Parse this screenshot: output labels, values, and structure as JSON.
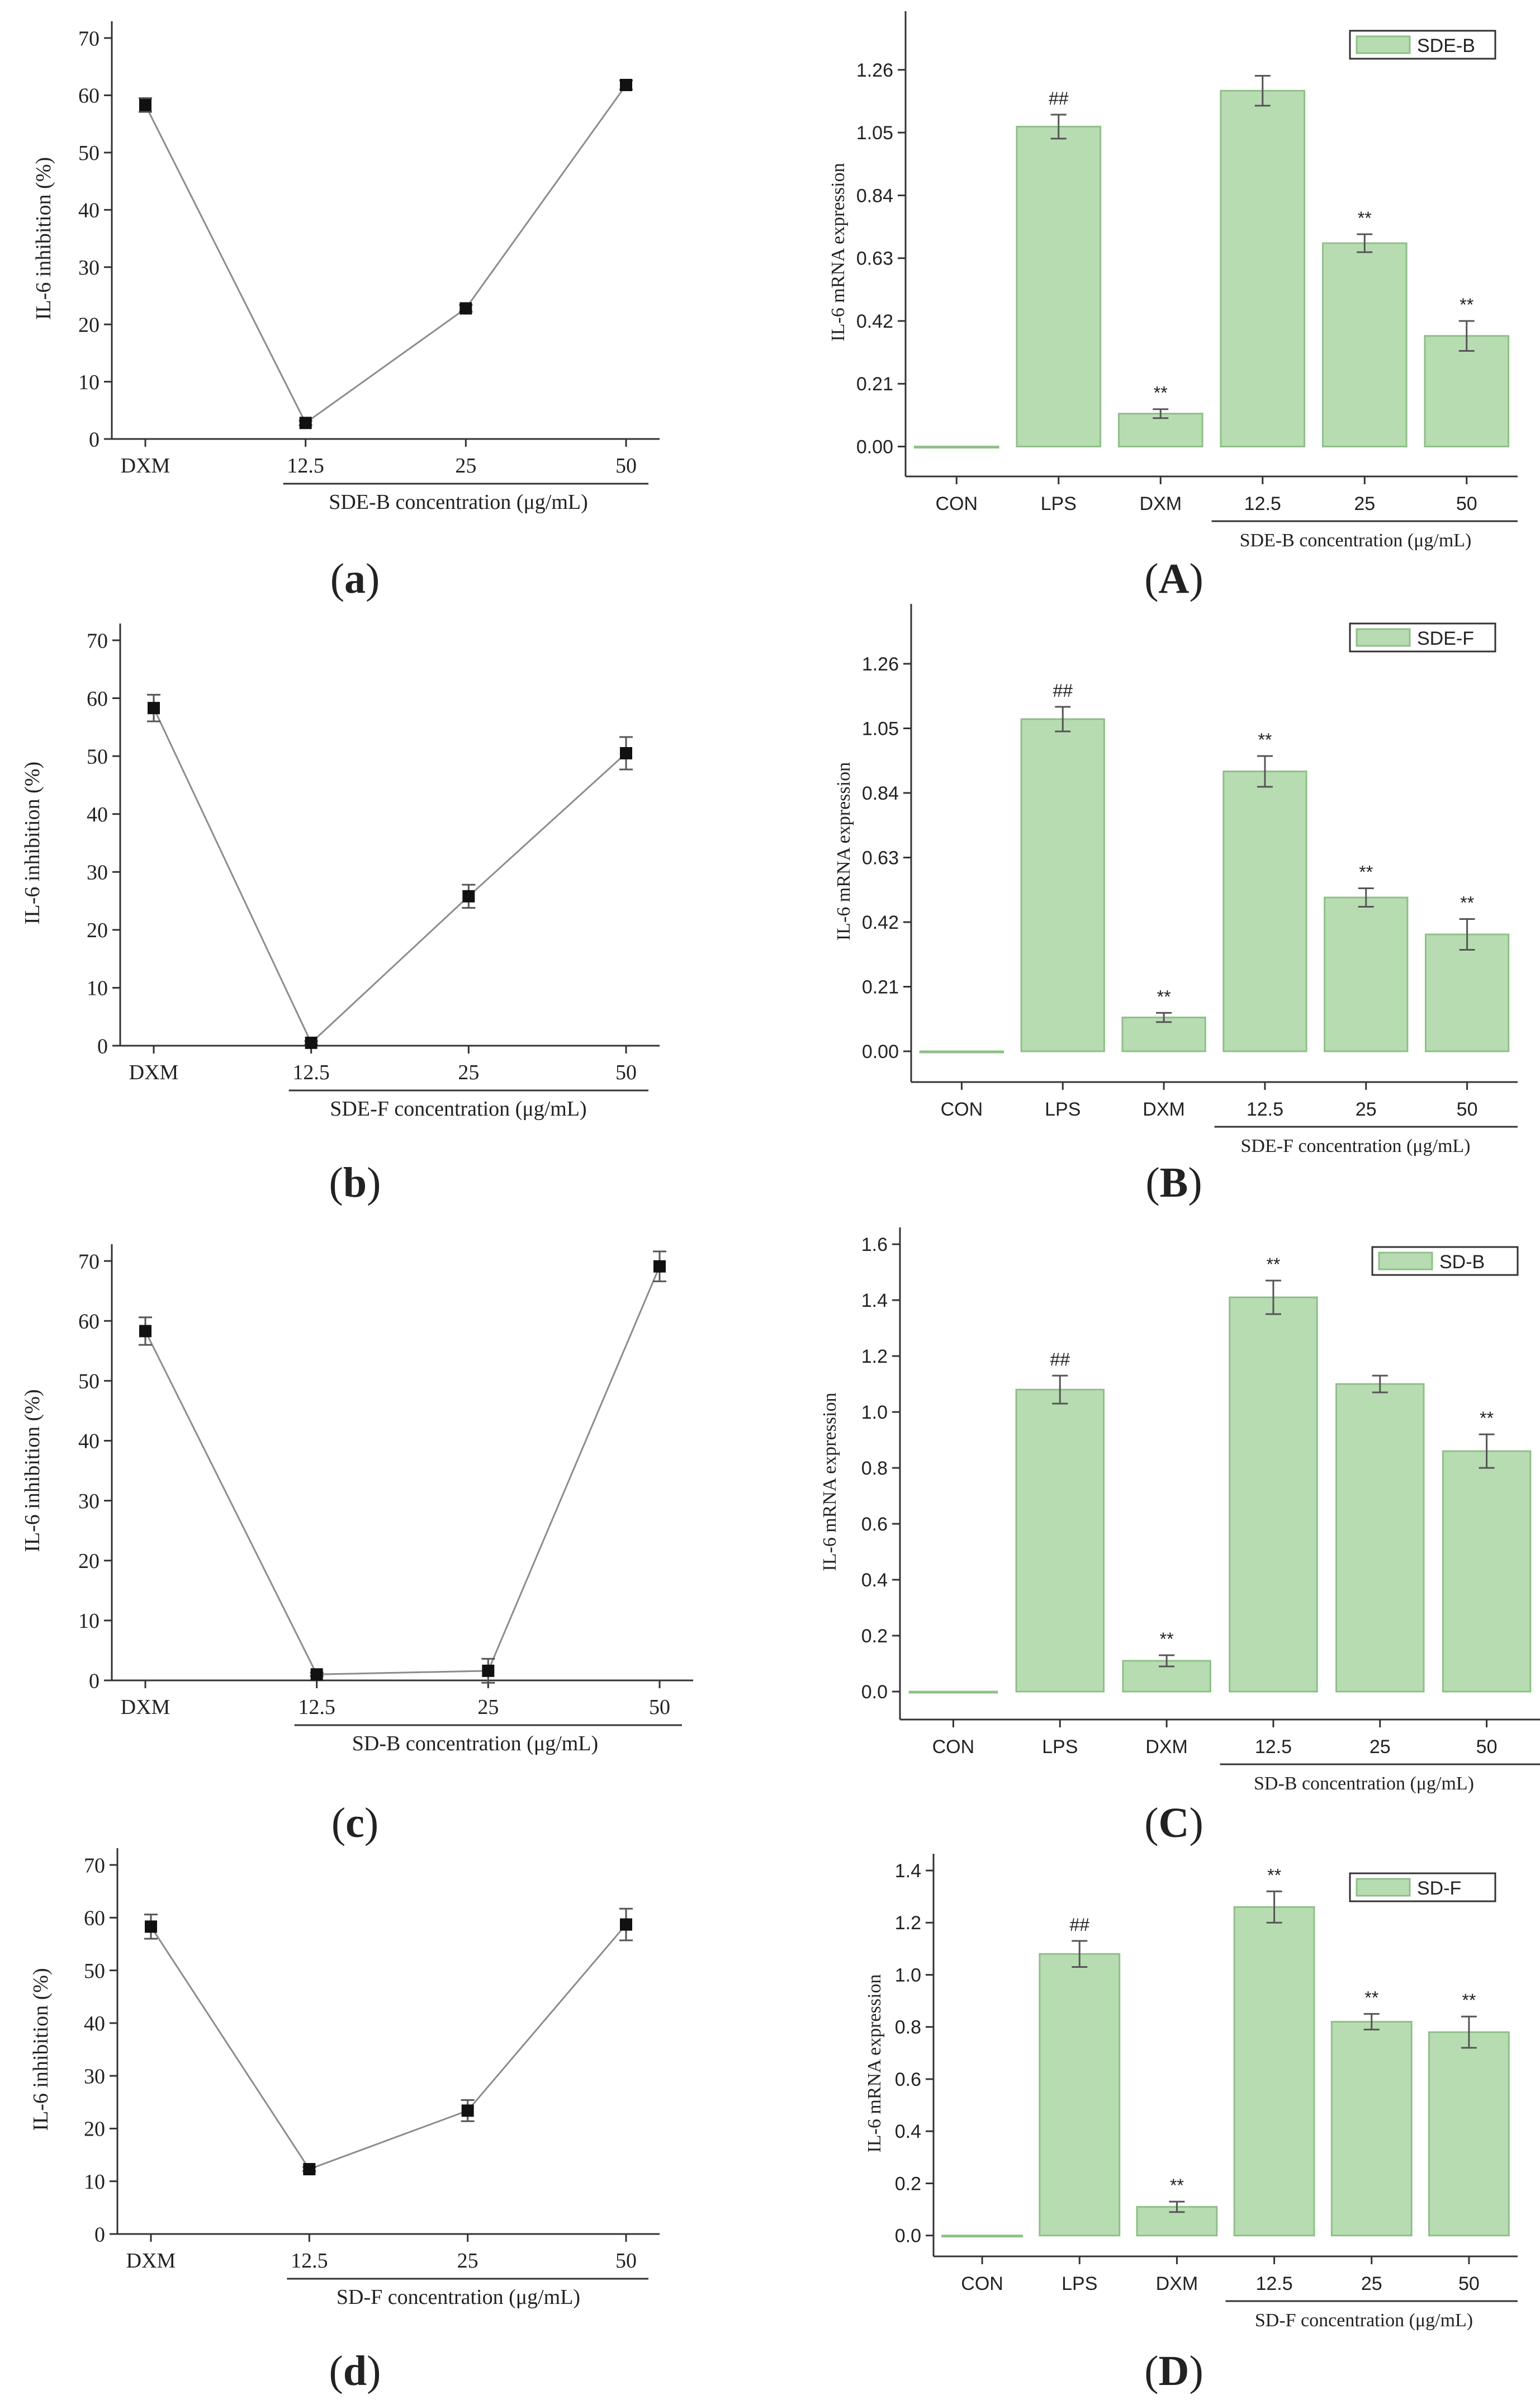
{
  "chart_data": [
    {
      "id": "a",
      "panel_label": "a",
      "type": "line",
      "categories": [
        "DXM",
        "12.5",
        "25",
        "50"
      ],
      "values": [
        58.3,
        2.8,
        22.8,
        61.8
      ],
      "errors": [
        1.2,
        0.4,
        0.6,
        0.8
      ],
      "ylabel": "IL-6 inhibition (%)",
      "xlabel": "SDE-B concentration (μg/mL)",
      "ylim": [
        0,
        70
      ],
      "yticks": [
        "0",
        "10",
        "20",
        "30",
        "40",
        "50",
        "60",
        "70"
      ]
    },
    {
      "id": "A",
      "panel_label": "A",
      "type": "bar",
      "categories": [
        "CON",
        "LPS",
        "DXM",
        "12.5",
        "25",
        "50"
      ],
      "values": [
        0.0,
        1.07,
        0.11,
        1.19,
        0.68,
        0.37
      ],
      "errors": [
        0,
        0.04,
        0.015,
        0.05,
        0.03,
        0.05
      ],
      "annotations": [
        "",
        "##",
        "**",
        "",
        "**",
        "**"
      ],
      "legend": "SDE-B",
      "ylabel": "IL-6 mRNA expression",
      "xlabel": "SDE-B  concentration (μg/mL)",
      "ylim": [
        -0.1,
        1.4
      ],
      "yticks": [
        "0.00",
        "0.21",
        "0.42",
        "0.63",
        "0.84",
        "1.05",
        "1.26"
      ]
    },
    {
      "id": "b",
      "panel_label": "b",
      "type": "line",
      "categories": [
        "DXM",
        "12.5",
        "25",
        "50"
      ],
      "values": [
        58.3,
        0.5,
        25.8,
        50.5
      ],
      "errors": [
        2.3,
        0.3,
        2.0,
        2.8
      ],
      "ylabel": "IL-6 inhibition (%)",
      "xlabel": "SDE-F concentration (μg/mL)",
      "ylim": [
        0,
        70
      ],
      "yticks": [
        "0",
        "10",
        "20",
        "30",
        "40",
        "50",
        "60",
        "70"
      ]
    },
    {
      "id": "B",
      "panel_label": "B",
      "type": "bar",
      "categories": [
        "CON",
        "LPS",
        "DXM",
        "12.5",
        "25",
        "50"
      ],
      "values": [
        0.0,
        1.08,
        0.11,
        0.91,
        0.5,
        0.38
      ],
      "errors": [
        0,
        0.04,
        0.015,
        0.05,
        0.03,
        0.05
      ],
      "annotations": [
        "",
        "##",
        "**",
        "**",
        "**",
        "**"
      ],
      "legend": "SDE-F",
      "ylabel": "IL-6 mRNA expression",
      "xlabel": "SDE-F concentration (μg/mL)",
      "ylim": [
        -0.1,
        1.4
      ],
      "yticks": [
        "0.00",
        "0.21",
        "0.42",
        "0.63",
        "0.84",
        "1.05",
        "1.26"
      ]
    },
    {
      "id": "c",
      "panel_label": "c",
      "type": "line",
      "categories": [
        "DXM",
        "12.5",
        "25",
        "50"
      ],
      "values": [
        58.3,
        1.0,
        1.6,
        69.1
      ],
      "errors": [
        2.3,
        0.3,
        2.0,
        2.5
      ],
      "ylabel": "IL-6 inhibition (%)",
      "xlabel": "SD-B concentration (μg/mL)",
      "ylim": [
        0,
        70
      ],
      "yticks": [
        "0",
        "10",
        "20",
        "30",
        "40",
        "50",
        "60",
        "70"
      ]
    },
    {
      "id": "C",
      "panel_label": "C",
      "type": "bar",
      "categories": [
        "CON",
        "LPS",
        "DXM",
        "12.5",
        "25",
        "50"
      ],
      "values": [
        0.0,
        1.08,
        0.11,
        1.41,
        1.1,
        0.86
      ],
      "errors": [
        0,
        0.05,
        0.02,
        0.06,
        0.03,
        0.06
      ],
      "annotations": [
        "",
        "##",
        "**",
        "**",
        "",
        "**"
      ],
      "legend": "SD-B",
      "ylabel": "IL-6 mRNA expression",
      "xlabel": "SD-B concentration (μg/mL)",
      "ylim": [
        -0.1,
        1.6
      ],
      "yticks": [
        "0.0",
        "0.2",
        "0.4",
        "0.6",
        "0.8",
        "1.0",
        "1.2",
        "1.4",
        "1.6"
      ]
    },
    {
      "id": "d",
      "panel_label": "d",
      "type": "line",
      "categories": [
        "DXM",
        "12.5",
        "25",
        "50"
      ],
      "values": [
        58.3,
        12.3,
        23.4,
        58.7
      ],
      "errors": [
        2.3,
        0.4,
        2.0,
        3.0
      ],
      "ylabel": "IL-6 inhibition (%)",
      "xlabel": "SD-F concentration (μg/mL)",
      "ylim": [
        0,
        70
      ],
      "yticks": [
        "0",
        "10",
        "20",
        "30",
        "40",
        "50",
        "60",
        "70"
      ]
    },
    {
      "id": "D",
      "panel_label": "D",
      "type": "bar",
      "categories": [
        "CON",
        "LPS",
        "DXM",
        "12.5",
        "25",
        "50"
      ],
      "values": [
        0.0,
        1.08,
        0.11,
        1.26,
        0.82,
        0.78
      ],
      "errors": [
        0,
        0.05,
        0.02,
        0.06,
        0.03,
        0.06
      ],
      "annotations": [
        "",
        "##",
        "**",
        "**",
        "**",
        "**"
      ],
      "legend": "SD-F",
      "ylabel": "IL-6 mRNA expression",
      "xlabel": "SD-F concentration (μg/mL)",
      "ylim": [
        -0.08,
        1.4
      ],
      "yticks": [
        "0.0",
        "0.2",
        "0.4",
        "0.6",
        "0.8",
        "1.0",
        "1.2",
        "1.4"
      ]
    }
  ],
  "colors": {
    "bar_fill": "#b8dcb2",
    "bar_stroke": "#8fbf88",
    "line": "#8c8c8c",
    "marker": "#111111"
  }
}
